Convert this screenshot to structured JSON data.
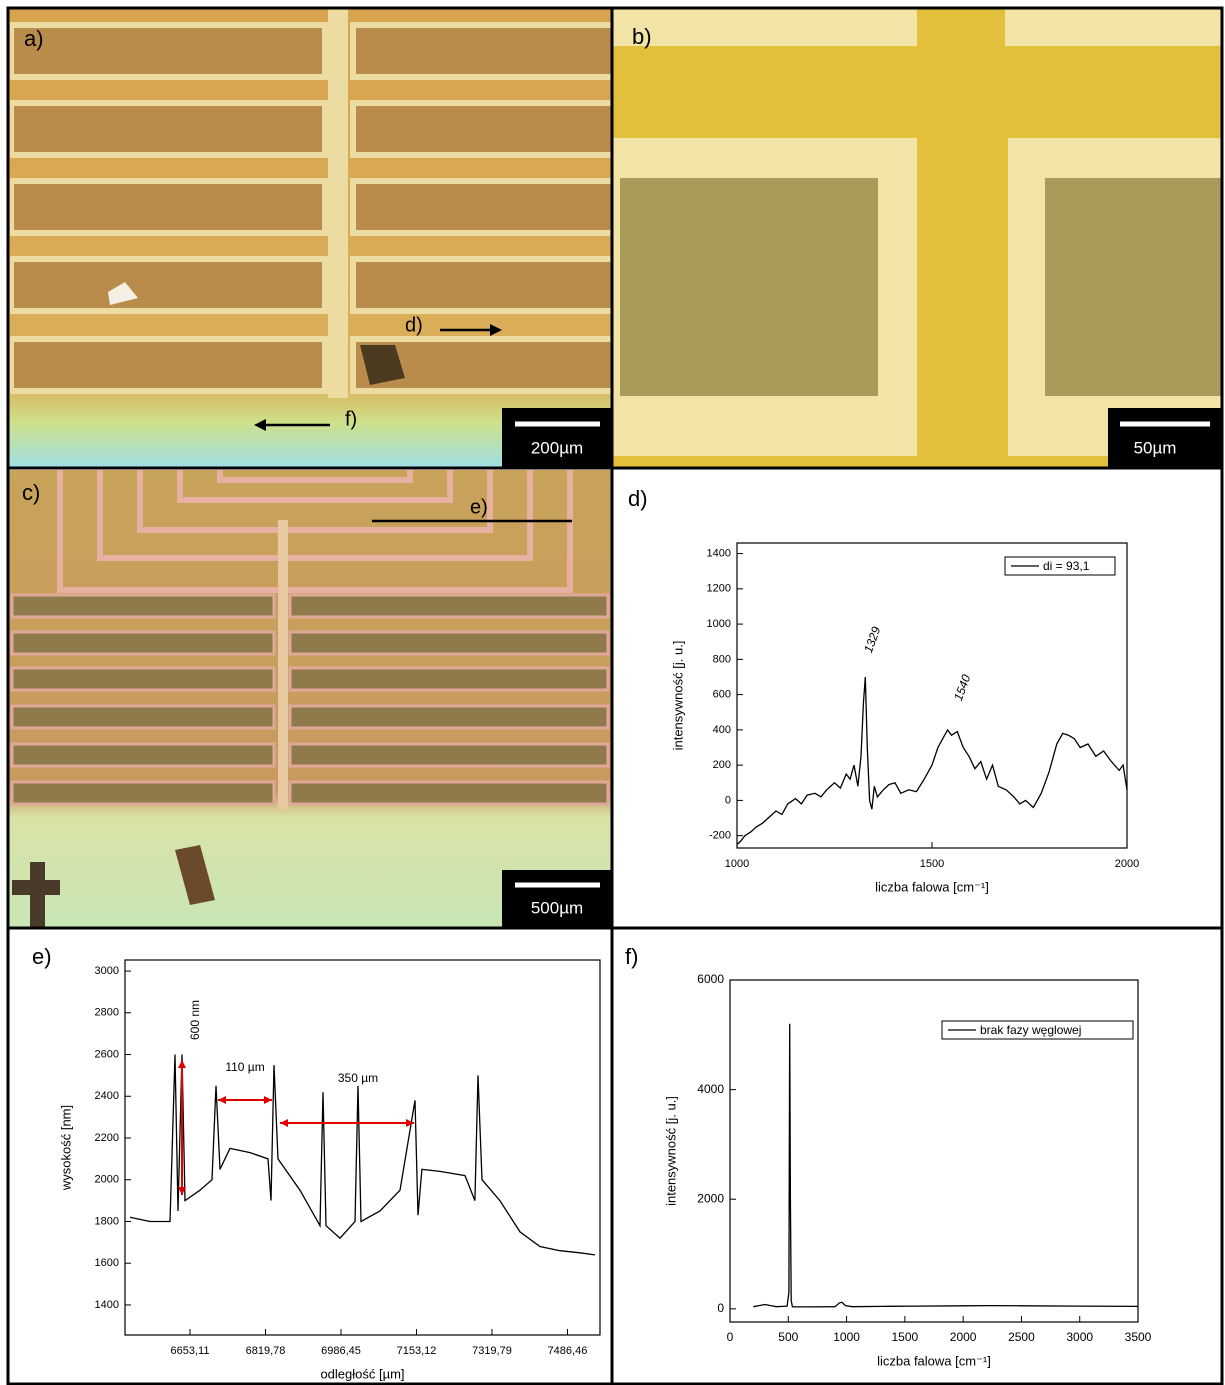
{
  "images": [
    {
      "label": "a)",
      "scale_bar": "200µm",
      "annotations": [
        "d)",
        "f)"
      ]
    },
    {
      "label": "b)",
      "scale_bar": "50µm"
    },
    {
      "label": "c)",
      "scale_bar": "500µm",
      "annotations": [
        "e)"
      ]
    }
  ],
  "chart_data": [
    {
      "type": "line",
      "label": "d)",
      "xlabel": "liczba falowa [cm⁻¹]",
      "ylabel": "intensywność [j. u.]",
      "xlim": [
        1000,
        2000
      ],
      "xticks": [
        1000,
        1500,
        2000
      ],
      "ylim": [
        -270,
        1460
      ],
      "yticks": [
        -200,
        0,
        200,
        400,
        600,
        800,
        1000,
        1200,
        1400
      ],
      "legend": "upper right",
      "annotations": [
        "1329",
        "1540"
      ],
      "x": [
        1000,
        1010,
        1020,
        1035,
        1050,
        1065,
        1080,
        1100,
        1115,
        1130,
        1150,
        1165,
        1180,
        1200,
        1215,
        1230,
        1250,
        1265,
        1280,
        1290,
        1300,
        1310,
        1318,
        1324,
        1329,
        1334,
        1340,
        1346,
        1352,
        1360,
        1375,
        1390,
        1405,
        1420,
        1440,
        1460,
        1480,
        1500,
        1515,
        1530,
        1540,
        1550,
        1565,
        1580,
        1595,
        1610,
        1625,
        1640,
        1655,
        1670,
        1690,
        1710,
        1725,
        1740,
        1760,
        1780,
        1800,
        1820,
        1835,
        1850,
        1865,
        1880,
        1900,
        1920,
        1940,
        1960,
        1980,
        1990,
        2000
      ],
      "series": [
        {
          "name": "di = 93,1",
          "color": "#000000",
          "values": [
            -250,
            -230,
            -200,
            -180,
            -150,
            -130,
            -100,
            -60,
            -80,
            -20,
            10,
            -20,
            30,
            40,
            20,
            60,
            100,
            70,
            150,
            120,
            200,
            80,
            250,
            550,
            700,
            300,
            0,
            -50,
            80,
            20,
            60,
            90,
            100,
            40,
            60,
            50,
            120,
            200,
            300,
            360,
            400,
            370,
            390,
            300,
            250,
            180,
            220,
            120,
            200,
            80,
            60,
            20,
            -20,
            0,
            -40,
            40,
            160,
            320,
            380,
            370,
            350,
            300,
            320,
            250,
            280,
            220,
            170,
            200,
            60
          ]
        }
      ]
    },
    {
      "type": "line",
      "label": "e)",
      "xlabel": "odległość [µm]",
      "ylabel": "wysokość [nm]",
      "xlim": [
        6509.6,
        7558.3
      ],
      "xticks": [
        {
          "value": 6653.11,
          "label": "6653,11"
        },
        {
          "value": 6819.78,
          "label": "6819,78"
        },
        {
          "value": 6986.45,
          "label": "6986,45"
        },
        {
          "value": 7153.12,
          "label": "7153,12"
        },
        {
          "value": 7319.79,
          "label": "7319,79"
        },
        {
          "value": 7486.46,
          "label": "7486,46"
        }
      ],
      "ylim": [
        1256,
        3053
      ],
      "yticks": [
        1400,
        1600,
        1800,
        2000,
        2200,
        2400,
        2600,
        2800,
        3000
      ],
      "annotations": [
        "110 µm",
        "350 µm",
        "600 nm"
      ],
      "x": [
        6520.7,
        6564.8,
        6609.0,
        6620.0,
        6626.6,
        6635.4,
        6642.1,
        6675.2,
        6701.7,
        6710.5,
        6719.3,
        6741.4,
        6785.6,
        6825.3,
        6831.9,
        6838.5,
        6847.4,
        6895.9,
        6940.1,
        6946.7,
        6953.3,
        6984.2,
        7017.3,
        7024.0,
        7030.6,
        7072.5,
        7116.7,
        7149.8,
        7156.4,
        7165.2,
        7205.0,
        7260.2,
        7282.2,
        7288.9,
        7297.7,
        7337.4,
        7381.6,
        7425.7,
        7469.9,
        7514.0,
        7547.1
      ],
      "series": [
        {
          "color": "#000000",
          "values": [
            1820,
            1800,
            1800,
            2600,
            1850,
            2600,
            1900,
            1950,
            2000,
            2450,
            2050,
            2150,
            2130,
            2100,
            1900,
            2550,
            2100,
            1950,
            1780,
            2420,
            1780,
            1720,
            1800,
            2450,
            1800,
            1850,
            1950,
            2380,
            1830,
            2050,
            2040,
            2020,
            1900,
            2500,
            2000,
            1900,
            1750,
            1680,
            1660,
            1650,
            1640
          ]
        }
      ]
    },
    {
      "type": "line",
      "label": "f)",
      "xlabel": "liczba falowa [cm⁻¹]",
      "ylabel": "intensywność [j. u.]",
      "xlim": [
        0,
        3500
      ],
      "xticks": [
        0,
        500,
        1000,
        1500,
        2000,
        2500,
        3000,
        3500
      ],
      "ylim": [
        -240,
        6000
      ],
      "yticks": [
        0,
        2000,
        4000,
        6000
      ],
      "legend": "upper right",
      "x": [
        200,
        250,
        300,
        350,
        400,
        450,
        490,
        505,
        512,
        518,
        525,
        535,
        560,
        700,
        900,
        940,
        960,
        990,
        1050,
        1300,
        1600,
        2000,
        2200,
        2500,
        3000,
        3500
      ],
      "series": [
        {
          "name": "brak fazy węglowej",
          "color": "#000000",
          "values": [
            40,
            60,
            80,
            60,
            40,
            45,
            50,
            300,
            5200,
            2000,
            150,
            40,
            35,
            35,
            40,
            110,
            120,
            60,
            40,
            45,
            50,
            55,
            60,
            55,
            50,
            45
          ]
        }
      ]
    }
  ]
}
